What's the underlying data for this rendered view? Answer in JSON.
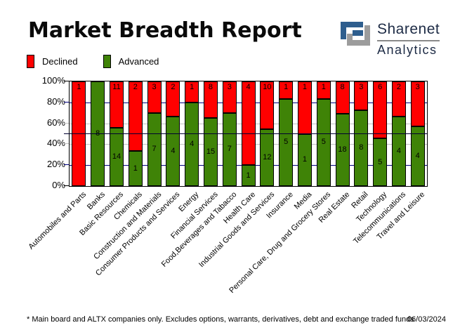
{
  "header": {
    "title": "Market Breadth Report"
  },
  "logo": {
    "brand": "Sharenet",
    "sub": "Analytics",
    "icon": "sharenet-s-mark",
    "blue": "#2e5e8e",
    "gray": "#9c9c9c"
  },
  "legend": [
    {
      "label": "Declined",
      "color": "#ff0000"
    },
    {
      "label": "Advanced",
      "color": "#3f8307"
    }
  ],
  "chart_data": {
    "type": "bar",
    "stacked": "percent",
    "title": "Market Breadth Report",
    "xlabel": "",
    "ylabel": "",
    "ylim": [
      0,
      100
    ],
    "grid": "on",
    "legend_position": "top-left",
    "categories": [
      "Automobiles and Parts",
      "Banks",
      "Basic Resources",
      "Chemicals",
      "Construction and Materials",
      "Consumer Products and Services",
      "Energy",
      "Financial Services",
      "Food,Beverages and Tabacco",
      "Health Care",
      "Industrial Goods and Services",
      "Insurance",
      "Media",
      "Personal Care, Drug and Grocery Stores",
      "Real Estate",
      "Retail",
      "Technology",
      "Telecommunications",
      "Travel and Leisure"
    ],
    "series": [
      {
        "name": "Declined",
        "color": "#ff0000",
        "values": [
          1,
          0,
          11,
          2,
          3,
          2,
          1,
          8,
          3,
          4,
          10,
          1,
          1,
          1,
          8,
          3,
          6,
          2,
          3
        ]
      },
      {
        "name": "Advanced",
        "color": "#3f8307",
        "values": [
          0,
          8,
          14,
          1,
          7,
          4,
          4,
          15,
          7,
          1,
          12,
          5,
          1,
          5,
          18,
          8,
          5,
          4,
          4
        ]
      }
    ],
    "ylabel_ticks": [
      "100%",
      "80%",
      "60%",
      "40%",
      "20%",
      "0%"
    ],
    "gridlines": [
      {
        "pct": 80,
        "color": "#000080"
      },
      {
        "pct": 60,
        "color": "#c0c0c0"
      },
      {
        "pct": 40,
        "color": "#c0c0c0"
      },
      {
        "pct": 20,
        "color": "#000080"
      }
    ],
    "reference_line": {
      "pct": 50,
      "color": "#000030"
    },
    "tick_colors": [
      "#000000",
      "#000080",
      "#c0c0c0",
      "#c0c0c0",
      "#000080",
      "#000000"
    ]
  },
  "footer": {
    "note": "* Main board and ALTX companies only. Excludes options, warrants, derivatives, debt and exchange traded funds",
    "date": "06/03/2024"
  }
}
